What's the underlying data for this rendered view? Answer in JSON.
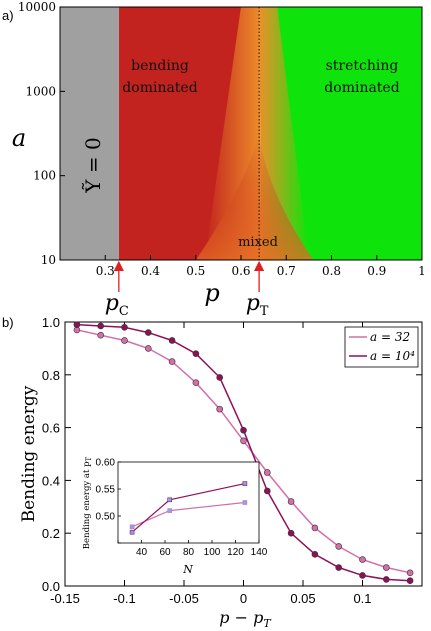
{
  "chart_data": [
    {
      "panel_label": "a)",
      "type": "heatmap",
      "xlabel": "p",
      "ylabel": "a",
      "xlim": [
        0.2,
        1.0
      ],
      "ylim": [
        10,
        10000
      ],
      "y_scale": "log",
      "xticks": [
        "0.3",
        "0.4",
        "0.5",
        "0.6",
        "0.7",
        "0.8",
        "0.9",
        "1"
      ],
      "yticks": [
        "10",
        "100",
        "1000",
        "10000"
      ],
      "regions": [
        {
          "name": "Ỹ = 0",
          "color": "#a0a0a0",
          "x_range": [
            0.2,
            0.33
          ]
        },
        {
          "name": "bending dominated",
          "color": "#c2231e",
          "x_range": [
            0.33,
            0.6
          ]
        },
        {
          "name": "mixed",
          "color": "#ee8f2a",
          "x_range": [
            0.6,
            0.72
          ]
        },
        {
          "name": "stretching dominated",
          "color": "#0ee40b",
          "x_range": [
            0.68,
            1.0
          ]
        }
      ],
      "markers": [
        {
          "label": "p",
          "sub": "C",
          "x": 0.33
        },
        {
          "label": "p",
          "sub": "T",
          "x": 0.64
        }
      ],
      "dotted_line_x": 0.64
    },
    {
      "panel_label": "b)",
      "type": "line",
      "xlabel": "p − p",
      "xlabel_sub": "T",
      "ylabel": "Bending energy",
      "xlim": [
        -0.15,
        0.15
      ],
      "ylim": [
        0.0,
        1.0
      ],
      "xticks": [
        "-0.15",
        "-0.1",
        "-0.05",
        "0",
        "0.05",
        "0.1"
      ],
      "yticks": [
        "0.0",
        "0.2",
        "0.4",
        "0.6",
        "0.8",
        "1.0"
      ],
      "legend_position": "top-right",
      "series": [
        {
          "name": "a = 32",
          "color": "#d46fa9",
          "x": [
            -0.14,
            -0.12,
            -0.1,
            -0.08,
            -0.06,
            -0.04,
            -0.02,
            0.0,
            0.02,
            0.04,
            0.06,
            0.08,
            0.1,
            0.12,
            0.14
          ],
          "y": [
            0.97,
            0.95,
            0.93,
            0.9,
            0.85,
            0.77,
            0.67,
            0.55,
            0.43,
            0.32,
            0.22,
            0.15,
            0.1,
            0.07,
            0.05
          ]
        },
        {
          "name": "a = 10⁴",
          "color": "#8d1158",
          "x": [
            -0.14,
            -0.12,
            -0.1,
            -0.08,
            -0.06,
            -0.04,
            -0.02,
            0.0,
            0.02,
            0.04,
            0.06,
            0.08,
            0.1,
            0.12,
            0.14
          ],
          "y": [
            0.99,
            0.985,
            0.98,
            0.96,
            0.93,
            0.88,
            0.79,
            0.59,
            0.36,
            0.2,
            0.12,
            0.07,
            0.04,
            0.025,
            0.02
          ]
        }
      ],
      "inset": {
        "type": "line",
        "xlabel": "N",
        "ylabel": "Bending energy at p",
        "ylabel_sub": "T",
        "xlim": [
          20,
          140
        ],
        "ylim": [
          0.45,
          0.6
        ],
        "xticks": [
          "20",
          "40",
          "60",
          "80",
          "100",
          "120",
          "140"
        ],
        "yticks": [
          "0.45",
          "0.50",
          "0.55",
          "0.60"
        ],
        "series": [
          {
            "name": "a = 32",
            "color": "#d46fa9",
            "x": [
              32,
              64,
              128
            ],
            "y": [
              0.48,
              0.51,
              0.525
            ]
          },
          {
            "name": "a = 10⁴",
            "color": "#8d1158",
            "x": [
              32,
              64,
              128
            ],
            "y": [
              0.47,
              0.53,
              0.56
            ]
          }
        ]
      }
    }
  ]
}
